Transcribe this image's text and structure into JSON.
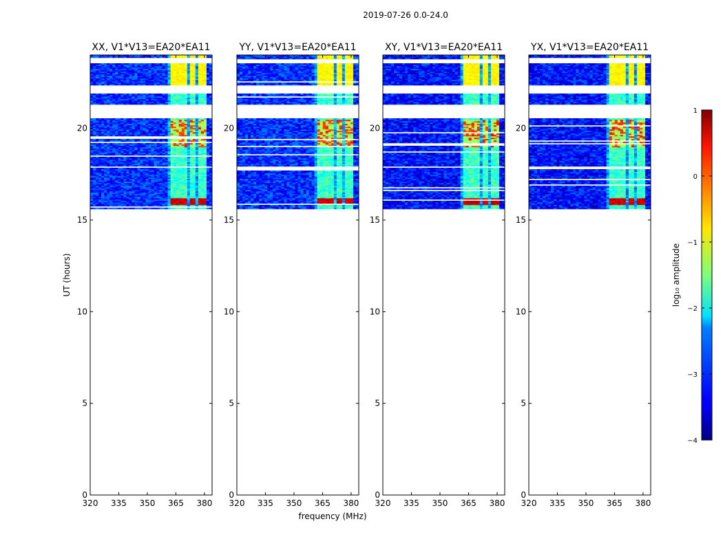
{
  "chart_data": {
    "type": "heatmap",
    "suptitle": "2019-07-26 0.0-24.0",
    "xlabel": "frequency (MHz)",
    "ylabel": "UT (hours)",
    "xlim": [
      320,
      384
    ],
    "ylim": [
      0,
      24
    ],
    "xticks": [
      320,
      335,
      350,
      365,
      380
    ],
    "yticks": [
      0,
      5,
      10,
      15,
      20
    ],
    "data_time_range_hours": [
      15.6,
      24.0
    ],
    "flagged_time_ranges_hours": [
      [
        23.55,
        23.8
      ],
      [
        21.9,
        22.35
      ],
      [
        20.55,
        21.3
      ],
      [
        17.85,
        17.95
      ]
    ],
    "rfi_band_mhz": [
      361,
      381
    ],
    "panels": [
      {
        "title": "XX, V1*V13=EA20*EA11",
        "polarization": "XX"
      },
      {
        "title": "YY, V1*V13=EA20*EA11",
        "polarization": "YY"
      },
      {
        "title": "XY, V1*V13=EA20*EA11",
        "polarization": "XY"
      },
      {
        "title": "YX, V1*V13=EA20*EA11",
        "polarization": "YX"
      }
    ],
    "colorbar": {
      "label": "log₁₀ amplitude",
      "range": [
        -4,
        1
      ],
      "ticks": [
        1,
        0,
        -1,
        -2,
        -3,
        -4
      ],
      "tick_labels": [
        "1",
        "0",
        "−1",
        "−2",
        "−3",
        "−4"
      ],
      "colormap": "jet"
    }
  }
}
